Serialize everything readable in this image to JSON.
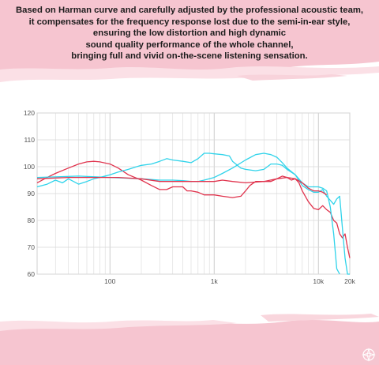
{
  "header": {
    "lines": [
      "Based on Harman curve and carefully adjusted by the professional acoustic team,",
      "it compensates for the frequency response lost due to the semi-in-ear style,",
      "ensuring the low distortion and high dynamic",
      "sound quality performance of the whole channel,",
      "bringing full and vivid on-the-scene listening sensation."
    ]
  },
  "colors": {
    "background_brush": "#f6c5d0",
    "background_brush_light": "#fbe0e6",
    "grid": "#d9d9d9",
    "red_series": "#e0334d",
    "cyan_series": "#2fd3ea"
  },
  "chart_data": {
    "type": "line",
    "title": "",
    "xlabel": "",
    "ylabel": "",
    "x_scale": "log",
    "xlim": [
      20,
      20000
    ],
    "ylim": [
      60,
      120
    ],
    "x_ticks": [
      {
        "value": 100,
        "label": "100"
      },
      {
        "value": 1000,
        "label": "1k"
      },
      {
        "value": 10000,
        "label": "10k"
      },
      {
        "value": 20000,
        "label": "20k"
      }
    ],
    "y_ticks": [
      60,
      70,
      80,
      90,
      100,
      110,
      120
    ],
    "grid": true,
    "legend": "none",
    "series": [
      {
        "color": "red",
        "points": [
          [
            20,
            94
          ],
          [
            25,
            96
          ],
          [
            30,
            97.5
          ],
          [
            40,
            99.5
          ],
          [
            50,
            101
          ],
          [
            60,
            101.8
          ],
          [
            70,
            102
          ],
          [
            80,
            101.8
          ],
          [
            100,
            101
          ],
          [
            120,
            99.5
          ],
          [
            150,
            97
          ],
          [
            200,
            95
          ],
          [
            250,
            93
          ],
          [
            300,
            91.5
          ],
          [
            350,
            91.5
          ],
          [
            400,
            92.5
          ],
          [
            500,
            92.5
          ],
          [
            550,
            91
          ],
          [
            600,
            91
          ],
          [
            700,
            90.5
          ],
          [
            800,
            89.5
          ],
          [
            1000,
            89.5
          ],
          [
            1200,
            89
          ],
          [
            1500,
            88.5
          ],
          [
            1800,
            89
          ],
          [
            2000,
            91
          ],
          [
            2200,
            93
          ],
          [
            2500,
            94.5
          ],
          [
            3000,
            94.5
          ],
          [
            3500,
            94.5
          ],
          [
            4000,
            95.5
          ],
          [
            4500,
            96.5
          ],
          [
            5000,
            96
          ],
          [
            5500,
            95
          ],
          [
            6000,
            95.5
          ],
          [
            6500,
            94
          ],
          [
            7000,
            91
          ],
          [
            8000,
            87
          ],
          [
            9000,
            84.5
          ],
          [
            10000,
            84
          ],
          [
            11000,
            85.5
          ],
          [
            12000,
            84
          ],
          [
            13000,
            83
          ],
          [
            14000,
            80
          ],
          [
            15000,
            79
          ],
          [
            16000,
            75
          ],
          [
            17000,
            73.5
          ],
          [
            18000,
            75
          ],
          [
            19000,
            70
          ],
          [
            20000,
            66
          ]
        ]
      },
      {
        "color": "cyan",
        "points": [
          [
            20,
            92.5
          ],
          [
            25,
            93.5
          ],
          [
            30,
            95
          ],
          [
            35,
            94
          ],
          [
            40,
            95.5
          ],
          [
            50,
            93.5
          ],
          [
            60,
            94.5
          ],
          [
            70,
            95.5
          ],
          [
            80,
            96
          ],
          [
            100,
            97
          ],
          [
            120,
            98
          ],
          [
            150,
            99
          ],
          [
            180,
            100
          ],
          [
            200,
            100.5
          ],
          [
            250,
            101
          ],
          [
            300,
            102
          ],
          [
            350,
            103
          ],
          [
            400,
            102.5
          ],
          [
            500,
            102
          ],
          [
            600,
            101.5
          ],
          [
            700,
            103
          ],
          [
            800,
            105
          ],
          [
            900,
            105
          ],
          [
            1000,
            104.8
          ],
          [
            1200,
            104.5
          ],
          [
            1400,
            104
          ],
          [
            1500,
            102
          ],
          [
            1800,
            99.5
          ],
          [
            2000,
            99
          ],
          [
            2500,
            98.5
          ],
          [
            3000,
            99
          ],
          [
            3500,
            101
          ],
          [
            4000,
            101
          ],
          [
            4500,
            100.5
          ],
          [
            5000,
            99
          ],
          [
            6000,
            97
          ],
          [
            7000,
            93
          ],
          [
            8000,
            91.5
          ],
          [
            9000,
            90.5
          ],
          [
            10000,
            90.5
          ],
          [
            11000,
            91.5
          ],
          [
            12000,
            89
          ],
          [
            13000,
            87.5
          ],
          [
            14000,
            86
          ],
          [
            15000,
            88
          ],
          [
            16000,
            89
          ],
          [
            17000,
            77
          ],
          [
            18000,
            66
          ],
          [
            19000,
            60
          ],
          [
            20000,
            60
          ]
        ]
      },
      {
        "color": "cyan",
        "points": [
          [
            20,
            96
          ],
          [
            50,
            96.5
          ],
          [
            100,
            96
          ],
          [
            200,
            95.5
          ],
          [
            300,
            95
          ],
          [
            400,
            95
          ],
          [
            500,
            94.8
          ],
          [
            600,
            94.5
          ],
          [
            700,
            94.5
          ],
          [
            800,
            95
          ],
          [
            1000,
            96
          ],
          [
            1200,
            97.5
          ],
          [
            1500,
            99.5
          ],
          [
            2000,
            102.5
          ],
          [
            2500,
            104.5
          ],
          [
            3000,
            105
          ],
          [
            3500,
            104.5
          ],
          [
            4000,
            103.5
          ],
          [
            4500,
            101.5
          ],
          [
            5000,
            99.5
          ],
          [
            6000,
            97
          ],
          [
            7000,
            94
          ],
          [
            8000,
            92.5
          ],
          [
            9000,
            92.5
          ],
          [
            10000,
            92.5
          ],
          [
            11000,
            92
          ],
          [
            12000,
            91
          ],
          [
            13000,
            85
          ],
          [
            14000,
            75
          ],
          [
            15000,
            62
          ],
          [
            16000,
            60
          ]
        ]
      },
      {
        "color": "red",
        "points": [
          [
            20,
            95.5
          ],
          [
            40,
            96
          ],
          [
            80,
            96
          ],
          [
            120,
            96
          ],
          [
            200,
            95.5
          ],
          [
            300,
            94.5
          ],
          [
            400,
            94.5
          ],
          [
            500,
            94.5
          ],
          [
            600,
            94.5
          ],
          [
            800,
            94.5
          ],
          [
            1000,
            94.5
          ],
          [
            1200,
            95
          ],
          [
            1500,
            94.5
          ],
          [
            2000,
            94
          ],
          [
            3000,
            94.5
          ],
          [
            4000,
            95.5
          ],
          [
            5000,
            96
          ],
          [
            6000,
            95.5
          ],
          [
            7000,
            94
          ],
          [
            8000,
            92
          ],
          [
            9000,
            91
          ],
          [
            10000,
            91
          ],
          [
            11000,
            90.5
          ],
          [
            12000,
            89.5
          ]
        ]
      }
    ]
  }
}
